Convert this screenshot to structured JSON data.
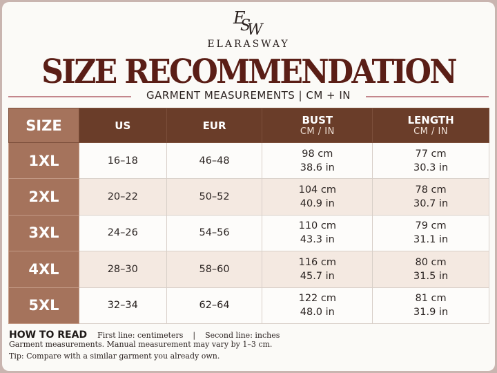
{
  "logo": {
    "monogram": "ESW",
    "icon": "monogram-logo"
  },
  "brand": "ELARASWAY",
  "title": "SIZE RECOMMENDATION",
  "subtitle": "GARMENT MEASUREMENTS | CM + IN",
  "table": {
    "headers": {
      "size": "SIZE",
      "us": "US",
      "eur": "EUR",
      "bust": "BUST",
      "bust_unit": "CM / IN",
      "length": "LENGTH",
      "length_unit": "CM / IN"
    },
    "rows": [
      {
        "size": "1XL",
        "us": "16–18",
        "eur": "46–48",
        "bust_cm": "98 cm",
        "bust_in": "38.6 in",
        "length_cm": "77 cm",
        "length_in": "30.3 in"
      },
      {
        "size": "2XL",
        "us": "20–22",
        "eur": "50–52",
        "bust_cm": "104 cm",
        "bust_in": "40.9 in",
        "length_cm": "78 cm",
        "length_in": "30.7 in"
      },
      {
        "size": "3XL",
        "us": "24–26",
        "eur": "54–56",
        "bust_cm": "110 cm",
        "bust_in": "43.3 in",
        "length_cm": "79 cm",
        "length_in": "31.1 in"
      },
      {
        "size": "4XL",
        "us": "28–30",
        "eur": "58–60",
        "bust_cm": "116 cm",
        "bust_in": "45.7 in",
        "length_cm": "80 cm",
        "length_in": "31.5 in"
      },
      {
        "size": "5XL",
        "us": "32–34",
        "eur": "62–64",
        "bust_cm": "122 cm",
        "bust_in": "48.0 in",
        "length_cm": "81 cm",
        "length_in": "31.9 in"
      }
    ]
  },
  "how_to_read": {
    "heading": "HOW TO READ",
    "text": "First line: centimeters    |    Second line: inches"
  },
  "notes": [
    "Garment measurements. Manual measurement may vary by 1–3 cm.",
    "Tip: Compare with a similar garment you already own."
  ],
  "colors": {
    "title": "#5a1e16",
    "header_dark": "#6a3d29",
    "size_column": "#a5735c",
    "row_alt": "#f4e9e1",
    "rule": "#c3868c"
  }
}
